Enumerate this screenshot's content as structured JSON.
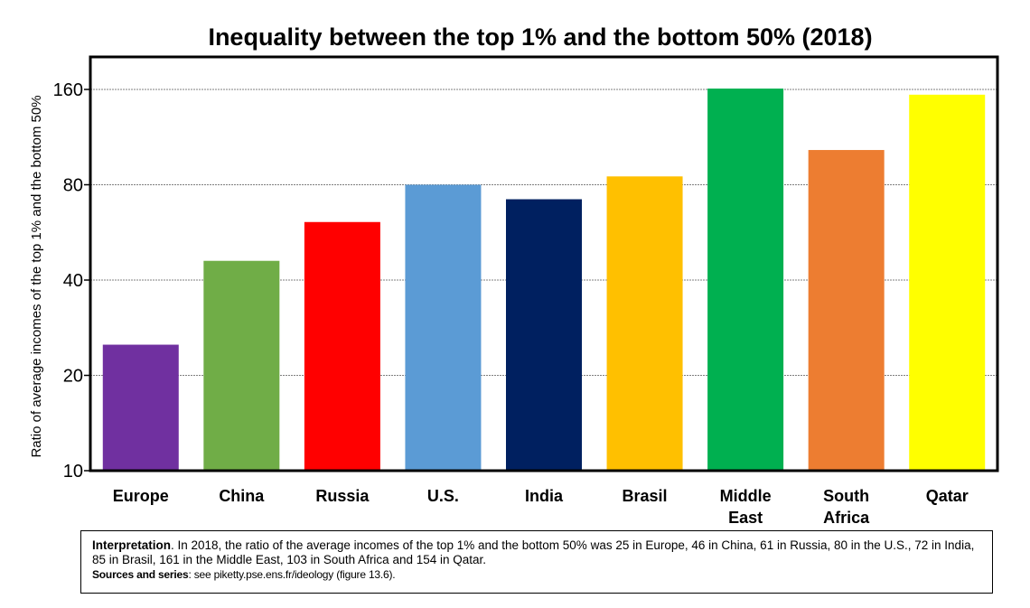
{
  "chart_data": {
    "type": "bar",
    "title": "Inequality between the top 1% and the bottom 50% (2018)",
    "ylabel": "Ratio of average incomes of the top 1% and the bottom 50%",
    "xlabel": "",
    "yscale": "log",
    "ylim": [
      10,
      200
    ],
    "yticks": [
      "10",
      "20",
      "40",
      "80",
      "160"
    ],
    "ytick_values": [
      10,
      20,
      40,
      80,
      160
    ],
    "grid": true,
    "categories": [
      [
        "Europe"
      ],
      [
        "China"
      ],
      [
        "Russia"
      ],
      [
        "U.S."
      ],
      [
        "India"
      ],
      [
        "Brasil"
      ],
      [
        "Middle",
        "East"
      ],
      [
        "South",
        "Africa"
      ],
      [
        "Qatar"
      ]
    ],
    "values": [
      25,
      46,
      61,
      80,
      72,
      85,
      161,
      103,
      154
    ],
    "colors": [
      "#7030a0",
      "#70ad47",
      "#ff0000",
      "#5b9bd5",
      "#002060",
      "#ffc000",
      "#00b050",
      "#ed7d31",
      "#ffff00"
    ]
  },
  "note": {
    "interpretation_label": "Interpretation",
    "interpretation_text": ". In 2018, the ratio of the average incomes of the top 1% and the bottom 50% was 25 in Europe, 46 in China, 61 in Russia, 80 in the U.S., 72 in India, 85 in Brasil, 161 in the Middle East, 103 in South Africa and 154 in Qatar.",
    "sources_label": "Sources and series",
    "sources_text": ": see piketty.pse.ens.fr/ideology (figure 13.6)."
  }
}
